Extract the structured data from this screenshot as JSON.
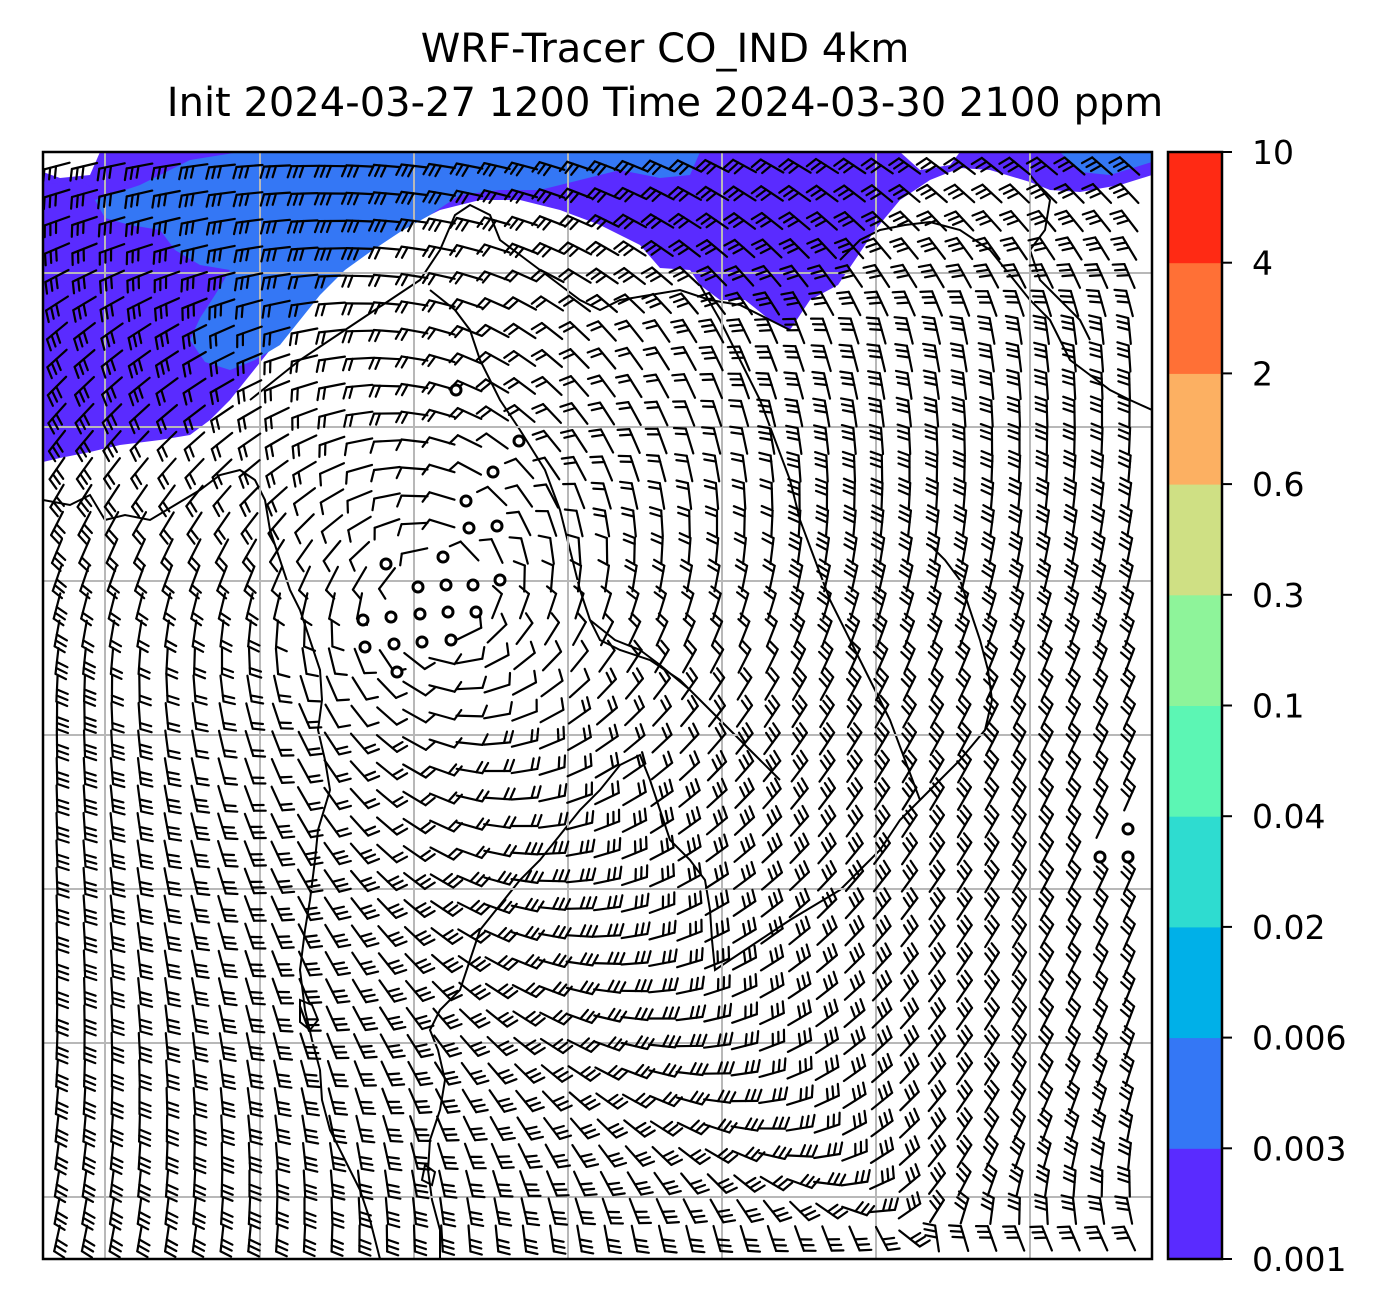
{
  "title": {
    "line1": "WRF-Tracer CO_IND 4km",
    "line2": "Init 2024-03-27 1200 Time 2024-03-30 2100 ppm"
  },
  "colorbar": {
    "levels": [
      "0.001",
      "0.003",
      "0.006",
      "0.02",
      "0.04",
      "0.1",
      "0.3",
      "0.6",
      "2",
      "4",
      "10"
    ],
    "colors": [
      "#5a2bff",
      "#3477f5",
      "#00b0e8",
      "#2edcd0",
      "#5cf6b4",
      "#8ef49a",
      "#cfe084",
      "#fcb062",
      "#ff7036",
      "#ff2a14"
    ]
  },
  "colors": {
    "tracer_low": "#5a2bff",
    "tracer_mid": "#3477f5",
    "grid": "#b8b8b8",
    "coast": "#000000"
  },
  "map": {
    "field": "CO_IND tracer",
    "wind_symbol": "wind-barbs",
    "calm_symbol": "calm-circles"
  }
}
